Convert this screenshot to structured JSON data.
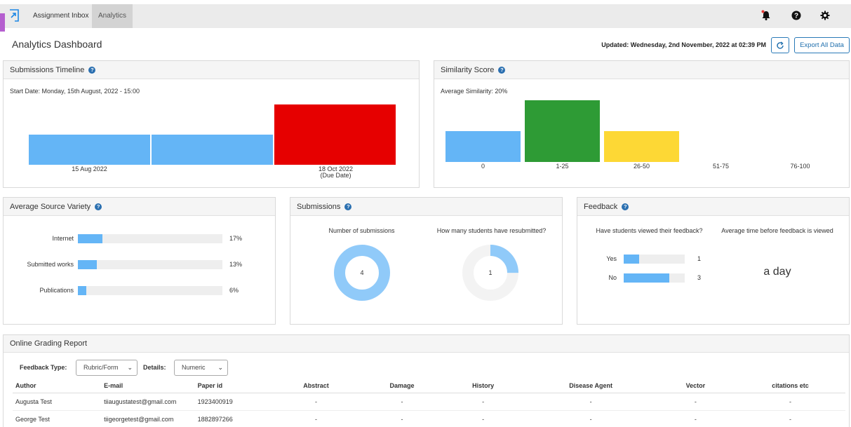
{
  "nav": {
    "tabs": [
      "Assignment Inbox",
      "Analytics"
    ],
    "icons": [
      "bell-icon",
      "help-icon",
      "gear-icon"
    ]
  },
  "header": {
    "title": "Analytics Dashboard",
    "updated": "Updated: Wednesday, 2nd November, 2022 at 02:39 PM",
    "export_label": "Export All Data"
  },
  "timeline": {
    "title": "Submissions Timeline",
    "start": "Start Date: Monday, 15th August, 2022 - 15:00",
    "labels": [
      "15 Aug 2022",
      "18 Oct 2022",
      "(Due Date)"
    ],
    "colors": {
      "normal": "#64b5f6",
      "due": "#e60000"
    },
    "chart_data": {
      "type": "bar",
      "categories": [
        "15 Aug 2022",
        "",
        "18 Oct 2022 (Due Date)"
      ],
      "values": [
        1,
        1,
        2
      ],
      "title": "Submissions Timeline"
    }
  },
  "similarity": {
    "title": "Similarity Score",
    "subtitle": "Average Similarity: 20%",
    "categories": [
      "0",
      "1-25",
      "26-50",
      "51-75",
      "76-100"
    ],
    "colors": [
      "#64b5f6",
      "#2e9b35",
      "#fdd835",
      "#cccccc",
      "#cccccc"
    ],
    "chart_data": {
      "type": "bar",
      "categories": [
        "0",
        "1-25",
        "26-50",
        "51-75",
        "76-100"
      ],
      "values": [
        1,
        2,
        1,
        0,
        0
      ],
      "title": "Similarity Score"
    }
  },
  "source_variety": {
    "title": "Average Source Variety",
    "items": [
      {
        "label": "Internet",
        "pct": "17%",
        "value": 17
      },
      {
        "label": "Submitted works",
        "pct": "13%",
        "value": 13
      },
      {
        "label": "Publications",
        "pct": "6%",
        "value": 6
      }
    ]
  },
  "submissions": {
    "title": "Submissions",
    "q1": "Number of submissions",
    "q2": "How many students have resubmitted?",
    "count": "4",
    "resubmitted": "1",
    "resubmitted_fraction": 0.25,
    "chart_data": [
      {
        "type": "pie",
        "title": "Number of submissions",
        "values": [
          4
        ]
      },
      {
        "type": "pie",
        "title": "How many students have resubmitted?",
        "values": [
          1,
          3
        ]
      }
    ]
  },
  "feedback": {
    "title": "Feedback",
    "q1": "Have students viewed their feedback?",
    "q2": "Average time before feedback is viewed",
    "rows": [
      {
        "label": "Yes",
        "count": "1",
        "value": 1
      },
      {
        "label": "No",
        "count": "3",
        "value": 3
      }
    ],
    "max": 4,
    "avg_time": "a day"
  },
  "report": {
    "title": "Online Grading Report",
    "feedback_type_label": "Feedback Type:",
    "feedback_type_value": "Rubric/Form",
    "details_label": "Details:",
    "details_value": "Numeric",
    "columns": [
      "Author",
      "E-mail",
      "Paper id",
      "Abstract",
      "Damage",
      "History",
      "Disease Agent",
      "Vector",
      "citations etc"
    ],
    "rows": [
      [
        "Augusta Test",
        "tiiaugustatest@gmail.com",
        "1923400919",
        "-",
        "-",
        "-",
        "-",
        "-",
        "-"
      ],
      [
        "George Test",
        "tiigeorgetest@gmail.com",
        "1882897266",
        "-",
        "-",
        "-",
        "-",
        "-",
        "-"
      ]
    ]
  }
}
